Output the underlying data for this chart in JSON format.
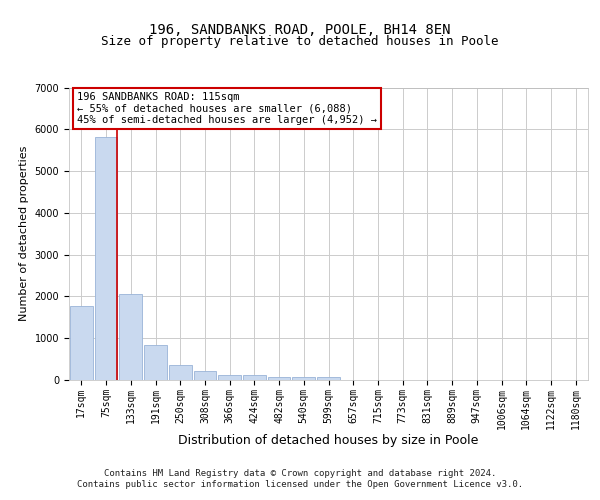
{
  "title1": "196, SANDBANKS ROAD, POOLE, BH14 8EN",
  "title2": "Size of property relative to detached houses in Poole",
  "xlabel": "Distribution of detached houses by size in Poole",
  "ylabel": "Number of detached properties",
  "bar_labels": [
    "17sqm",
    "75sqm",
    "133sqm",
    "191sqm",
    "250sqm",
    "308sqm",
    "366sqm",
    "424sqm",
    "482sqm",
    "540sqm",
    "599sqm",
    "657sqm",
    "715sqm",
    "773sqm",
    "831sqm",
    "889sqm",
    "947sqm",
    "1006sqm",
    "1064sqm",
    "1122sqm",
    "1180sqm"
  ],
  "bar_values": [
    1780,
    5820,
    2060,
    830,
    370,
    220,
    110,
    110,
    65,
    65,
    65,
    0,
    0,
    0,
    0,
    0,
    0,
    0,
    0,
    0,
    0
  ],
  "bar_color": "#c9d9ef",
  "bar_edge_color": "#9ab4d8",
  "vline_color": "#cc0000",
  "ylim": [
    0,
    7000
  ],
  "yticks": [
    0,
    1000,
    2000,
    3000,
    4000,
    5000,
    6000,
    7000
  ],
  "annotation_box_text": "196 SANDBANKS ROAD: 115sqm\n← 55% of detached houses are smaller (6,088)\n45% of semi-detached houses are larger (4,952) →",
  "bg_color": "#ffffff",
  "plot_bg_color": "#ffffff",
  "footer1": "Contains HM Land Registry data © Crown copyright and database right 2024.",
  "footer2": "Contains public sector information licensed under the Open Government Licence v3.0.",
  "grid_color": "#cccccc",
  "title1_fontsize": 10,
  "title2_fontsize": 9,
  "ylabel_fontsize": 8,
  "xlabel_fontsize": 9,
  "tick_fontsize": 7,
  "ann_fontsize": 7.5,
  "footer_fontsize": 6.5
}
